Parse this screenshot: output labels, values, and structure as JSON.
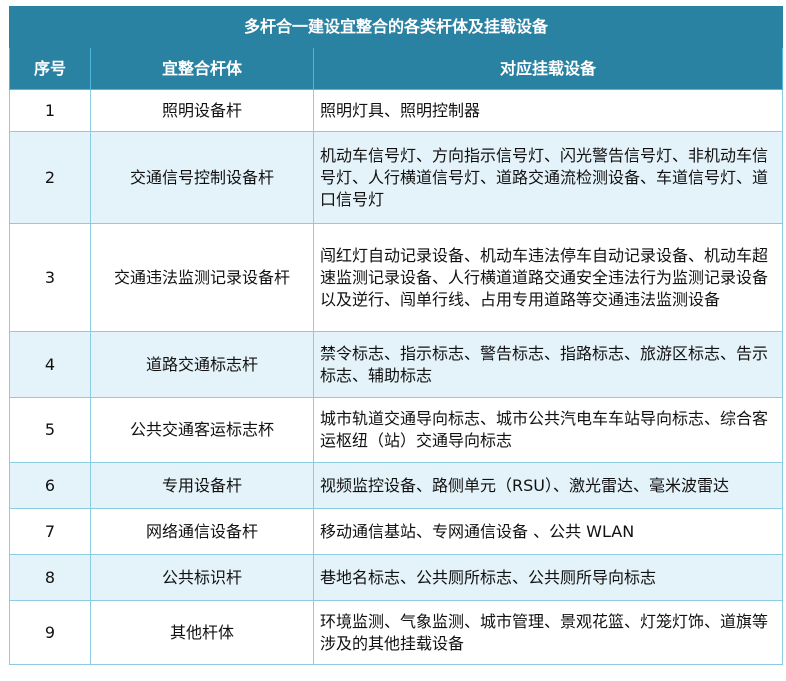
{
  "title": "多杆合一建设宜整合的各类杆体及挂载设备",
  "headers": [
    "序号",
    "宜整合杆体",
    "对应挂载设备"
  ],
  "rows": [
    {
      "no": "1",
      "pole": "照明设备杆",
      "devices": "照明灯具、照明控制器"
    },
    {
      "no": "2",
      "pole": "交通信号控制设备杆",
      "devices": "机动车信号灯、方向指示信号灯、闪光警告信号灯、非机动车信号灯、人行横道信号灯、道路交通流检测设备、车道信号灯、道口信号灯"
    },
    {
      "no": "3",
      "pole": "交通违法监测记录设备杆",
      "devices": "闯红灯自动记录设备、机动车违法停车自动记录设备、机动车超速监测记录设备、人行横道道路交通安全违法行为监测记录设备以及逆行、闯单行线、占用专用道路等交通违法监测设备"
    },
    {
      "no": "4",
      "pole": "道路交通标志杆",
      "devices": "禁令标志、指示标志、警告标志、指路标志、旅游区标志、告示标志、辅助标志"
    },
    {
      "no": "5",
      "pole": "公共交通客运标志杯",
      "devices": "城市轨道交通导向标志、城市公共汽电车车站导向标志、综合客运枢纽（站）交通导向标志"
    },
    {
      "no": "6",
      "pole": "专用设备杆",
      "devices": "视频监控设备、路侧单元（RSU）、激光雷达、毫米波雷达"
    },
    {
      "no": "7",
      "pole": "网络通信设备杆",
      "devices": "移动通信基站、专网通信设备 、公共 WLAN"
    },
    {
      "no": "8",
      "pole": "公共标识杆",
      "devices": "巷地名标志、公共厕所标志、公共厕所导向标志"
    },
    {
      "no": "9",
      "pole": "其他杆体",
      "devices": "环境监测、气象监测、城市管理、景观花篮、灯笼灯饰、道旗等涉及的其他挂载设备"
    }
  ],
  "colors": {
    "header": "#2a82a3",
    "alt_row": "#e4f2f9",
    "border": "#8ccbe0"
  }
}
